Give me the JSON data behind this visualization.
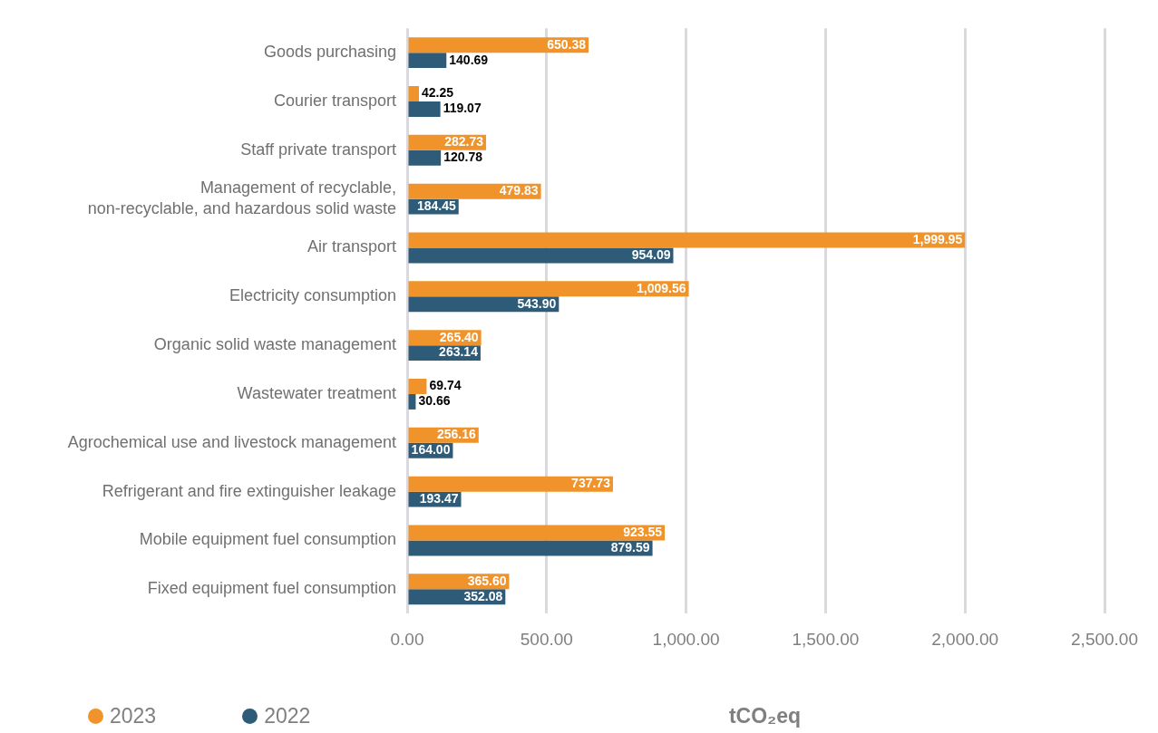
{
  "chart_data": {
    "type": "bar",
    "orientation": "horizontal",
    "categories": [
      "Goods purchasing",
      "Courier transport",
      "Staff private transport",
      "Management of recyclable, non-recyclable, and hazardous solid waste",
      "Air transport",
      "Electricity consumption",
      "Organic solid waste management",
      "Wastewater treatment",
      "Agrochemical use and livestock management",
      "Refrigerant and fire extinguisher leakage",
      "Mobile equipment fuel consumption",
      "Fixed equipment fuel consumption"
    ],
    "series": [
      {
        "name": "2023",
        "color": "#f0932b",
        "values": [
          650.38,
          42.25,
          282.73,
          479.83,
          1999.95,
          1009.56,
          265.4,
          69.74,
          256.16,
          737.73,
          923.55,
          365.6
        ],
        "value_labels": [
          "650.38",
          "42.25",
          "282.73",
          "479.83",
          "1,999.95",
          "1,009.56",
          "265.40",
          "69.74",
          "256.16",
          "737.73",
          "923.55",
          "365.60"
        ]
      },
      {
        "name": "2022",
        "color": "#2d5b78",
        "values": [
          140.69,
          119.07,
          120.78,
          184.45,
          954.09,
          543.9,
          263.14,
          30.66,
          164.0,
          193.47,
          879.59,
          352.08
        ],
        "value_labels": [
          "140.69",
          "119.07",
          "120.78",
          "184.45",
          "954.09",
          "543.90",
          "263.14",
          "30.66",
          "164.00",
          "193.47",
          "879.59",
          "352.08"
        ]
      }
    ],
    "xlim": [
      0,
      2500
    ],
    "xticks": [
      {
        "value": 0,
        "label": "0.00"
      },
      {
        "value": 500,
        "label": "500.00"
      },
      {
        "value": 1000,
        "label": "1,000.00"
      },
      {
        "value": 1500,
        "label": "1,500.00"
      },
      {
        "value": 2000,
        "label": "2,000.00"
      },
      {
        "value": 2500,
        "label": "2,500.00"
      }
    ],
    "xlabel": "tCO₂eq",
    "grid": "x",
    "legend": "bottom left"
  }
}
